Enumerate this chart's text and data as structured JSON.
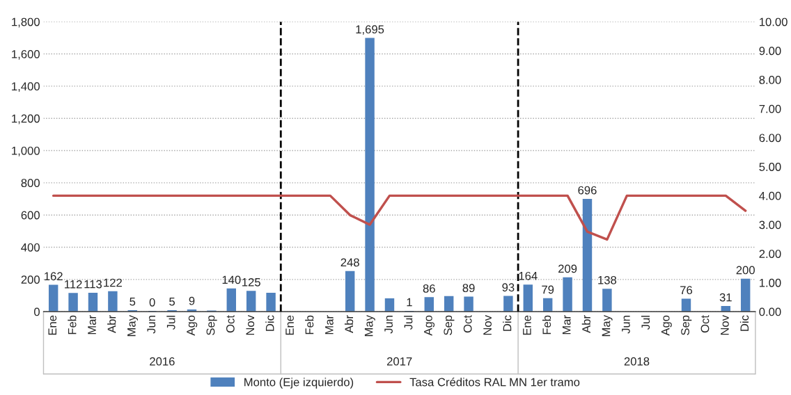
{
  "chart_data": {
    "type": "bar",
    "categories": [
      "Ene",
      "Feb",
      "Mar",
      "Abr",
      "May",
      "Jun",
      "Jul",
      "Ago",
      "Sep",
      "Oct",
      "Nov",
      "Dic",
      "Ene",
      "Feb",
      "Mar",
      "Abr",
      "May",
      "Jun",
      "Jul",
      "Ago",
      "Sep",
      "Oct",
      "Nov",
      "Dic",
      "Ene",
      "Feb",
      "Mar",
      "Abr",
      "May",
      "Jun",
      "Jul",
      "Ago",
      "Sep",
      "Oct",
      "Nov",
      "Dic"
    ],
    "series": [
      {
        "name": "Monto (Eje izquierdo)",
        "color": "#4f81bd",
        "values": [
          162,
          112,
          113,
          122,
          5,
          0,
          5,
          9,
          3,
          140,
          125,
          113,
          null,
          null,
          null,
          248,
          1695,
          78,
          1,
          86,
          92,
          89,
          null,
          93,
          164,
          79,
          209,
          696,
          138,
          null,
          null,
          null,
          76,
          null,
          31,
          200
        ],
        "value_labels": [
          "162",
          "112",
          "113",
          "122",
          "5",
          "0",
          "5",
          "9",
          null,
          "140",
          "125",
          null,
          null,
          null,
          null,
          "248",
          "1,695",
          null,
          "1",
          "86",
          null,
          "89",
          null,
          "93",
          "164",
          "79",
          "209",
          "696",
          "138",
          null,
          null,
          null,
          "76",
          null,
          "31",
          "200"
        ]
      },
      {
        "name": "Tasa Créditos RAL MN 1er tramo",
        "type": "line",
        "axis": "y2",
        "color": "#c0504d",
        "values": [
          4,
          4,
          4,
          4,
          4,
          4,
          4,
          4,
          4,
          4,
          4,
          4,
          4,
          4,
          4,
          3.33,
          3.0,
          4,
          4,
          4,
          4,
          4,
          4,
          4,
          4,
          4,
          4,
          2.76,
          2.49,
          4,
          4,
          4,
          4,
          4,
          4,
          3.48
        ]
      }
    ],
    "annotations": [
      "2016",
      "2017",
      "2018"
    ],
    "ylim": [
      0,
      1800
    ],
    "yticks": [
      {
        "value": 0,
        "label": "0"
      },
      {
        "value": 200,
        "label": "200"
      },
      {
        "value": 400,
        "label": "400"
      },
      {
        "value": 600,
        "label": "600"
      },
      {
        "value": 800,
        "label": "800"
      },
      {
        "value": 1000,
        "label": "1,000"
      },
      {
        "value": 1200,
        "label": "1,200"
      },
      {
        "value": 1400,
        "label": "1,400"
      },
      {
        "value": 1600,
        "label": "1,600"
      },
      {
        "value": 1800,
        "label": "1,800"
      }
    ],
    "y2lim": [
      0,
      10
    ],
    "y2ticks": [
      {
        "value": 0,
        "label": "0.00"
      },
      {
        "value": 1,
        "label": "1.00"
      },
      {
        "value": 2,
        "label": "2.00"
      },
      {
        "value": 3,
        "label": "3.00"
      },
      {
        "value": 4,
        "label": "4.00"
      },
      {
        "value": 5,
        "label": "5.00"
      },
      {
        "value": 6,
        "label": "6.00"
      },
      {
        "value": 7,
        "label": "7.00"
      },
      {
        "value": 8,
        "label": "8.00"
      },
      {
        "value": 9,
        "label": "9.00"
      },
      {
        "value": 10,
        "label": "10.00"
      }
    ],
    "grid": "y",
    "legend": "bottom",
    "marker": "none",
    "line_style": "solid"
  }
}
